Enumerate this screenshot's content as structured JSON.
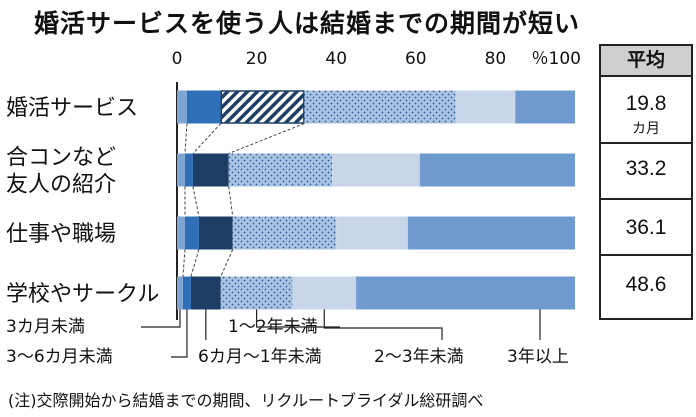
{
  "title": "婚活サービスを使う人は結婚までの期間が短い",
  "chart_data": {
    "type": "bar",
    "stacked": true,
    "orientation": "horizontal",
    "xlim": [
      0,
      100
    ],
    "x_ticks": [
      "0",
      "20",
      "40",
      "60",
      "80",
      "％100"
    ],
    "categories": [
      "婚活サービス",
      "合コンなど友人の紹介",
      "仕事や職場",
      "学校やサークル"
    ],
    "category_lines": [
      [
        "婚活サービス"
      ],
      [
        "合コンなど",
        "友人の紹介"
      ],
      [
        "仕事や職場"
      ],
      [
        "学校やサークル"
      ]
    ],
    "series": [
      {
        "name": "3カ月未満",
        "values": [
          2.5,
          2,
          2,
          1.5
        ],
        "color": "#7fa6d3",
        "pattern": "solid"
      },
      {
        "name": "3～6カ月未満",
        "values": [
          8.5,
          2,
          3.5,
          2
        ],
        "color": "#2f6fb8",
        "pattern": "solid"
      },
      {
        "name": "6カ月～1年未満",
        "values": [
          21,
          9,
          8.5,
          7.5
        ],
        "color": "#1d3f66",
        "pattern": "hatch"
      },
      {
        "name": "1～2年未満",
        "values": [
          38,
          26,
          26,
          18
        ],
        "color": "#a8c3e3",
        "pattern": "dots"
      },
      {
        "name": "2～3年未満",
        "values": [
          15,
          22,
          18,
          16
        ],
        "color": "#c9d6ea",
        "pattern": "solid"
      },
      {
        "name": "3年以上",
        "values": [
          15,
          39,
          42,
          55
        ],
        "color": "#6f9ad0",
        "pattern": "solid"
      }
    ]
  },
  "average": {
    "header": "平均",
    "values": [
      "19.8",
      "33.2",
      "36.1",
      "48.6"
    ],
    "unit": "カ月"
  },
  "note": "(注)交際開始から結婚までの期間、リクルートブライダル総研調べ"
}
